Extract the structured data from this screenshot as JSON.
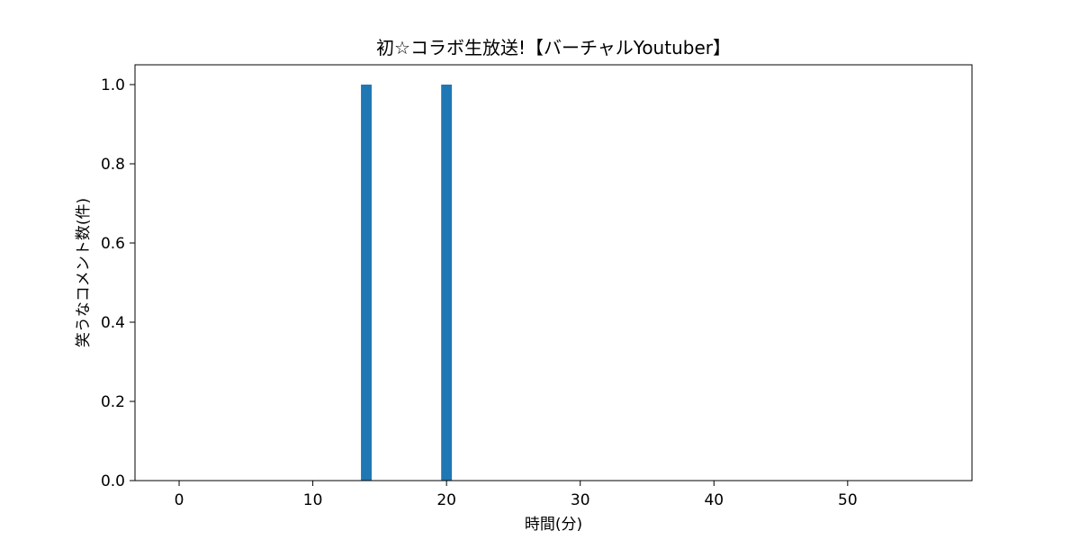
{
  "chart_data": {
    "type": "bar",
    "title": "初☆コラボ生放送!【バーチャルYoutuber】",
    "xlabel": "時間(分)",
    "ylabel": "笑うなコメント数(件)",
    "xlim": [
      -3.3,
      59.3
    ],
    "ylim": [
      0,
      1.05
    ],
    "xticks": [
      0,
      10,
      20,
      30,
      40,
      50
    ],
    "yticks": [
      0.0,
      0.2,
      0.4,
      0.6,
      0.8,
      1.0
    ],
    "xtick_labels": [
      "0",
      "10",
      "20",
      "30",
      "40",
      "50"
    ],
    "ytick_labels": [
      "0.0",
      "0.2",
      "0.4",
      "0.6",
      "0.8",
      "1.0"
    ],
    "x": [
      0,
      1,
      2,
      3,
      4,
      5,
      6,
      7,
      8,
      9,
      10,
      11,
      12,
      13,
      14,
      15,
      16,
      17,
      18,
      19,
      20,
      21,
      22,
      23,
      24,
      25,
      26,
      27,
      28,
      29,
      30,
      31,
      32,
      33,
      34,
      35,
      36,
      37,
      38,
      39,
      40,
      41,
      42,
      43,
      44,
      45,
      46,
      47,
      48,
      49,
      50,
      51,
      52,
      53,
      54,
      55,
      56
    ],
    "values": [
      0,
      0,
      0,
      0,
      0,
      0,
      0,
      0,
      0,
      0,
      0,
      0,
      0,
      0,
      1,
      0,
      0,
      0,
      0,
      0,
      1,
      0,
      0,
      0,
      0,
      0,
      0,
      0,
      0,
      0,
      0,
      0,
      0,
      0,
      0,
      0,
      0,
      0,
      0,
      0,
      0,
      0,
      0,
      0,
      0,
      0,
      0,
      0,
      0,
      0,
      0,
      0,
      0,
      0,
      0,
      0,
      0
    ],
    "bar_color": "#1f77b4",
    "grid": false,
    "legend": false
  }
}
